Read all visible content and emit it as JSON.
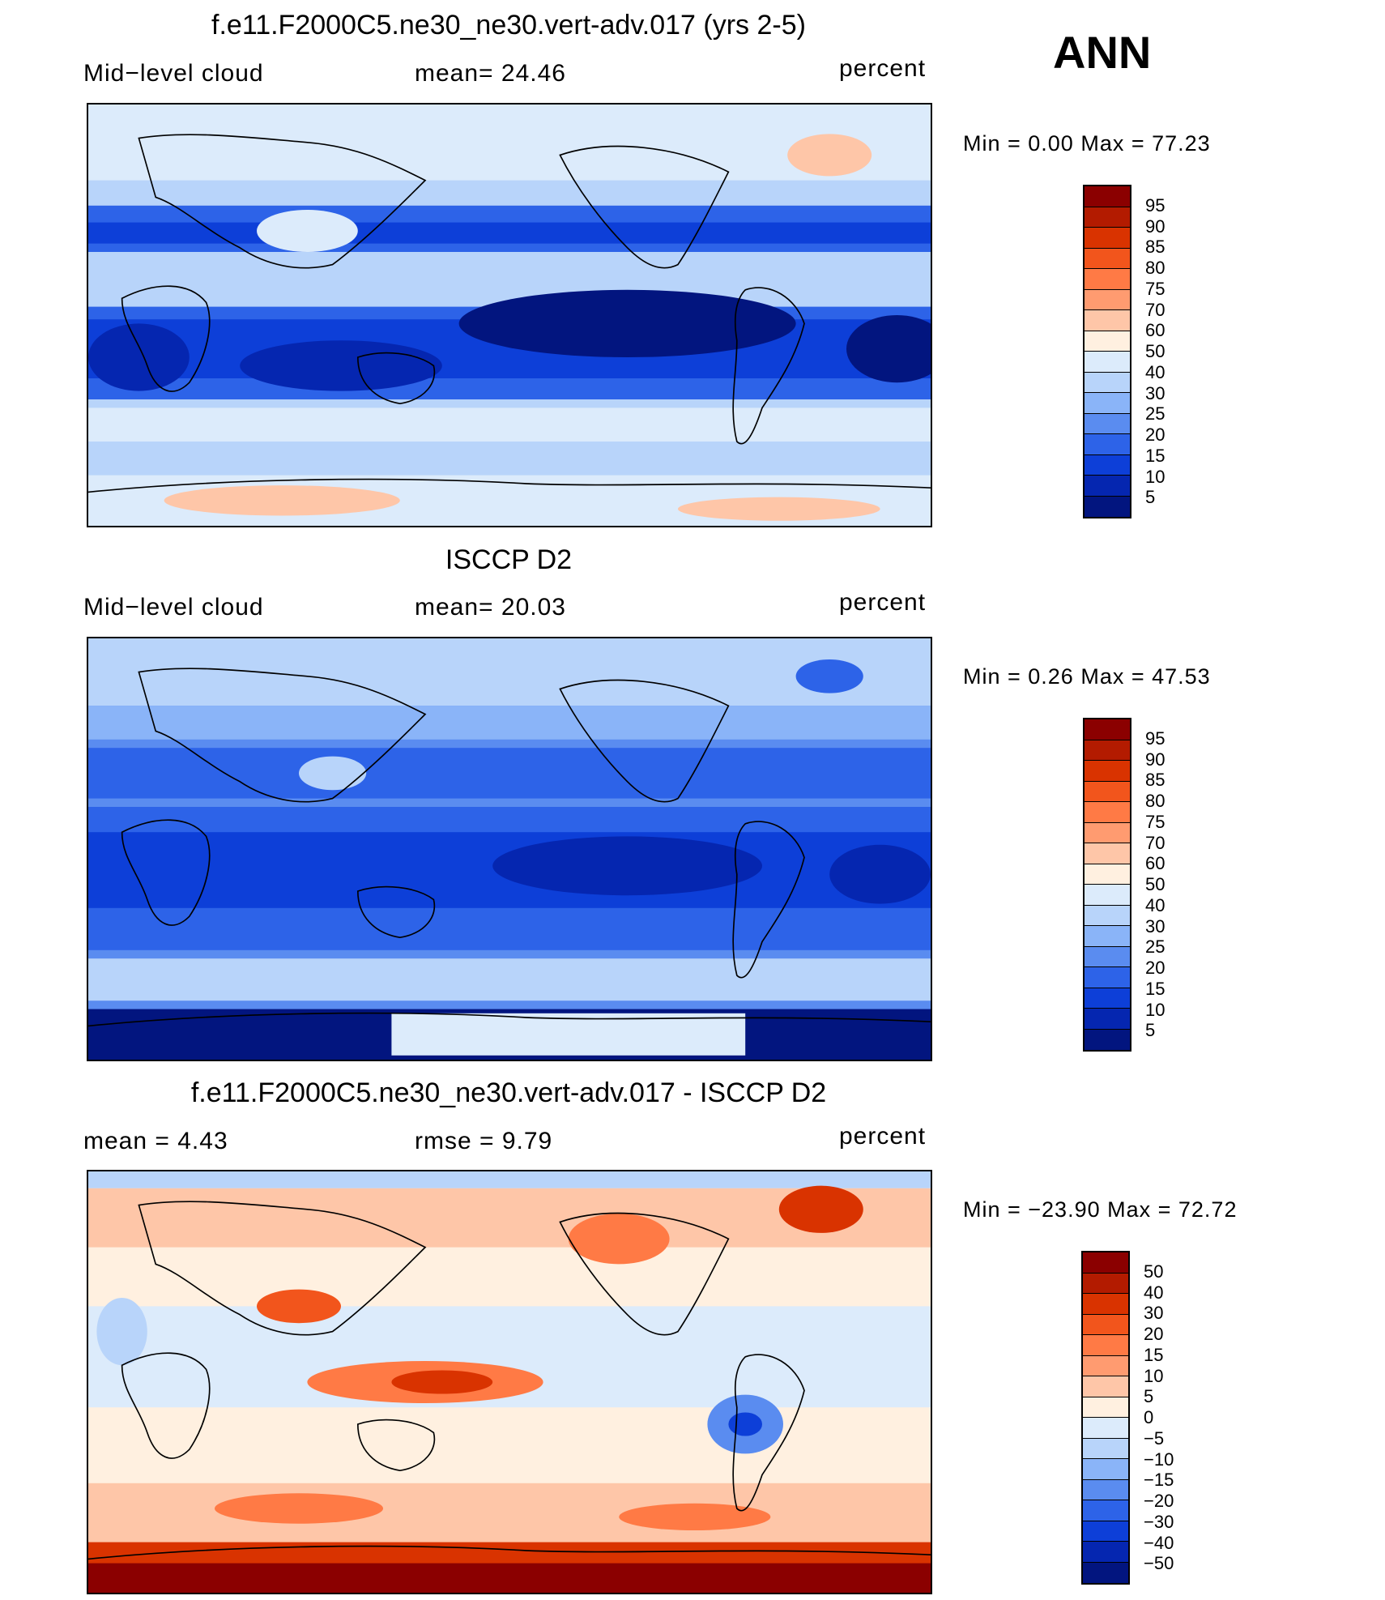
{
  "season": "ANN",
  "panels": [
    {
      "title": "f.e11.F2000C5.ne30_ne30.vert-adv.017 (yrs 2-5)",
      "left_label": "Mid−level cloud",
      "center_label": "mean=   24.46",
      "units": "percent",
      "minmax": "Min =    0.00 Max =   77.23",
      "colorbar": {
        "labels": [
          "95",
          "90",
          "85",
          "80",
          "75",
          "70",
          "60",
          "50",
          "40",
          "30",
          "25",
          "20",
          "15",
          "10",
          "5"
        ],
        "colors": [
          "#8b0000",
          "#b31b00",
          "#d93300",
          "#f2551c",
          "#ff7a45",
          "#ff9b70",
          "#fec6a8",
          "#fff0e0",
          "#dcebfb",
          "#b8d4fa",
          "#8ab4f8",
          "#5a8cf0",
          "#2d63e8",
          "#0d3fd8",
          "#0526b0",
          "#02157f"
        ]
      }
    },
    {
      "title": "ISCCP D2",
      "left_label": "Mid−level cloud",
      "center_label": "mean=   20.03",
      "units": "percent",
      "minmax": "Min =    0.26 Max =   47.53",
      "colorbar": {
        "labels": [
          "95",
          "90",
          "85",
          "80",
          "75",
          "70",
          "60",
          "50",
          "40",
          "30",
          "25",
          "20",
          "15",
          "10",
          "5"
        ],
        "colors": [
          "#8b0000",
          "#b31b00",
          "#d93300",
          "#f2551c",
          "#ff7a45",
          "#ff9b70",
          "#fec6a8",
          "#fff0e0",
          "#dcebfb",
          "#b8d4fa",
          "#8ab4f8",
          "#5a8cf0",
          "#2d63e8",
          "#0d3fd8",
          "#0526b0",
          "#02157f"
        ]
      }
    },
    {
      "title": "f.e11.F2000C5.ne30_ne30.vert-adv.017 - ISCCP D2",
      "left_label": "mean =    4.43",
      "center_label": "rmse =    9.79",
      "units": "percent",
      "minmax": "Min = −23.90 Max =   72.72",
      "colorbar": {
        "labels": [
          "50",
          "40",
          "30",
          "20",
          "15",
          "10",
          "5",
          "0",
          "−5",
          "−10",
          "−15",
          "−20",
          "−30",
          "−40",
          "−50"
        ],
        "colors": [
          "#8b0000",
          "#b31b00",
          "#d93300",
          "#f2551c",
          "#ff7a45",
          "#ff9b70",
          "#fec6a8",
          "#fff0e0",
          "#dcebfb",
          "#b8d4fa",
          "#8ab4f8",
          "#5a8cf0",
          "#2d63e8",
          "#0d3fd8",
          "#0526b0",
          "#02157f"
        ]
      }
    }
  ]
}
